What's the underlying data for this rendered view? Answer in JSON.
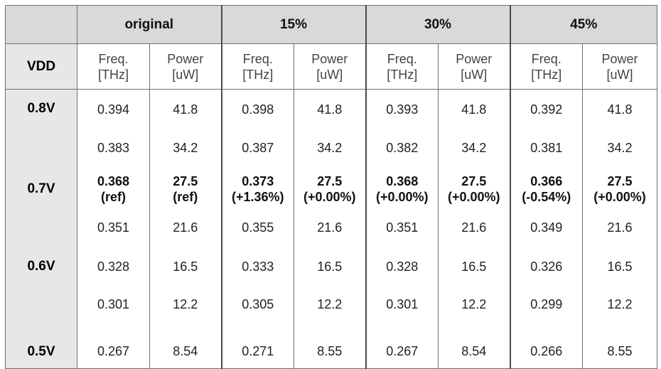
{
  "header": {
    "groups": [
      "original",
      "15%",
      "30%",
      "45%"
    ],
    "vdd_label": "VDD",
    "freq_label": [
      "Freq.",
      "[THz]"
    ],
    "power_label": [
      "Power",
      "[uW]"
    ]
  },
  "rows": [
    {
      "vdd": "0.8V",
      "cells": [
        [
          "0.394"
        ],
        [
          "41.8"
        ],
        [
          "0.398"
        ],
        [
          "41.8"
        ],
        [
          "0.393"
        ],
        [
          "41.8"
        ],
        [
          "0.392"
        ],
        [
          "41.8"
        ]
      ],
      "bold": false
    },
    {
      "vdd": "",
      "cells": [
        [
          "0.383"
        ],
        [
          "34.2"
        ],
        [
          "0.387"
        ],
        [
          "34.2"
        ],
        [
          "0.382"
        ],
        [
          "34.2"
        ],
        [
          "0.381"
        ],
        [
          "34.2"
        ]
      ],
      "bold": false
    },
    {
      "vdd": "0.7V",
      "cells": [
        [
          "0.368",
          "(ref)"
        ],
        [
          "27.5",
          "(ref)"
        ],
        [
          "0.373",
          "(+1.36%)"
        ],
        [
          "27.5",
          "(+0.00%)"
        ],
        [
          "0.368",
          "(+0.00%)"
        ],
        [
          "27.5",
          "(+0.00%)"
        ],
        [
          "0.366",
          "(-0.54%)"
        ],
        [
          "27.5",
          "(+0.00%)"
        ]
      ],
      "bold": true
    },
    {
      "vdd": "",
      "cells": [
        [
          "0.351"
        ],
        [
          "21.6"
        ],
        [
          "0.355"
        ],
        [
          "21.6"
        ],
        [
          "0.351"
        ],
        [
          "21.6"
        ],
        [
          "0.349"
        ],
        [
          "21.6"
        ]
      ],
      "bold": false
    },
    {
      "vdd": "0.6V",
      "cells": [
        [
          "0.328"
        ],
        [
          "16.5"
        ],
        [
          "0.333"
        ],
        [
          "16.5"
        ],
        [
          "0.328"
        ],
        [
          "16.5"
        ],
        [
          "0.326"
        ],
        [
          "16.5"
        ]
      ],
      "bold": false
    },
    {
      "vdd": "",
      "cells": [
        [
          "0.301"
        ],
        [
          "12.2"
        ],
        [
          "0.305"
        ],
        [
          "12.2"
        ],
        [
          "0.301"
        ],
        [
          "12.2"
        ],
        [
          "0.299"
        ],
        [
          "12.2"
        ]
      ],
      "bold": false
    },
    {
      "vdd": "0.5V",
      "cells": [
        [
          "0.267"
        ],
        [
          "8.54"
        ],
        [
          "0.271"
        ],
        [
          "8.55"
        ],
        [
          "0.267"
        ],
        [
          "8.54"
        ],
        [
          "0.266"
        ],
        [
          "8.55"
        ]
      ],
      "bold": false
    }
  ]
}
